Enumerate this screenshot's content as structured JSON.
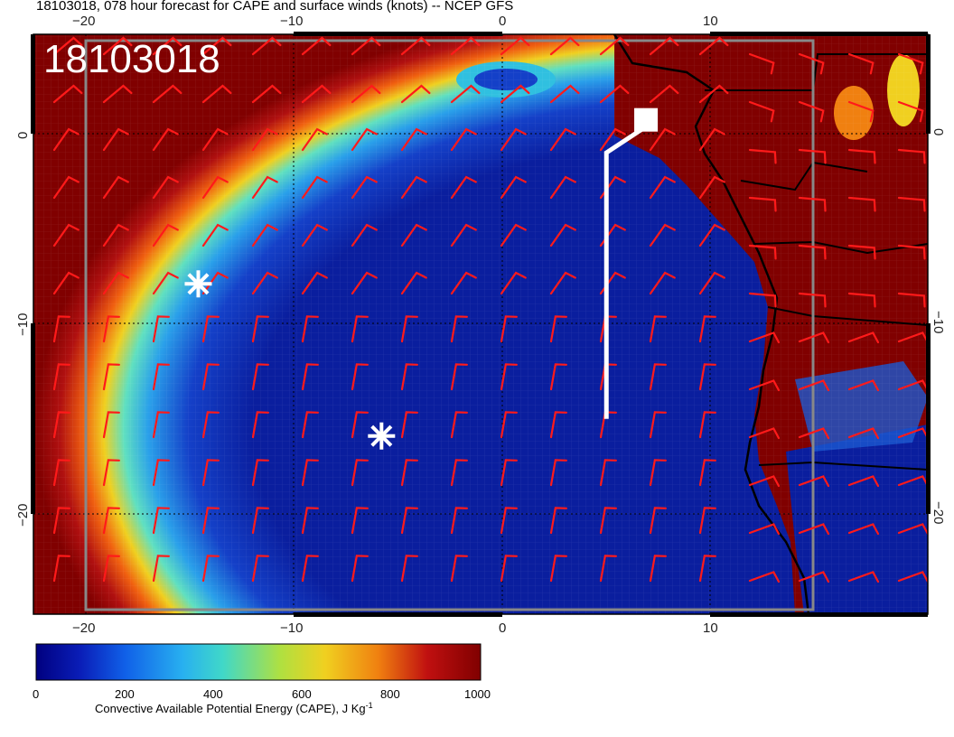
{
  "title": "18103018, 078 hour forecast for CAPE and surface winds (knots) -- NCEP GFS",
  "date_stamp": "18103018",
  "x_axis": {
    "top_ticks": [
      "−20",
      "−10",
      "0",
      "10"
    ],
    "bottom_ticks": [
      "−20",
      "−10",
      "0",
      "10"
    ]
  },
  "y_axis": {
    "left_ticks": [
      "0",
      "−10",
      "−20"
    ],
    "right_ticks": [
      "0",
      "−10",
      "−20"
    ]
  },
  "colorbar": {
    "ticks": [
      "0",
      "200",
      "400",
      "600",
      "800",
      "1000"
    ],
    "label": "Convective Available Potential Energy (CAPE), J Kg",
    "label_sup": "-1",
    "min": 0,
    "max": 1000,
    "colors": [
      "#000080",
      "#0a1eb8",
      "#1060e8",
      "#28b0f0",
      "#40d8c8",
      "#b0e040",
      "#f0d020",
      "#f08010",
      "#c01010",
      "#800000"
    ]
  },
  "map_colors": {
    "ocean_low": "#0a1e9e",
    "land_high": "#800000",
    "wind_barbs": "#ff1a1a",
    "coast": "#000000",
    "track": "#ffffff"
  },
  "markers": [
    {
      "name": "asterisk-marker-1",
      "lon": -14.6,
      "lat": -7.9
    },
    {
      "name": "asterisk-marker-2",
      "lon": -5.8,
      "lat": -15.9
    }
  ],
  "track": {
    "points": [
      [
        6.8,
        0.3
      ],
      [
        5.0,
        -1.0
      ],
      [
        5.0,
        -15.0
      ]
    ],
    "end_square": [
      6.9,
      0.3
    ]
  }
}
